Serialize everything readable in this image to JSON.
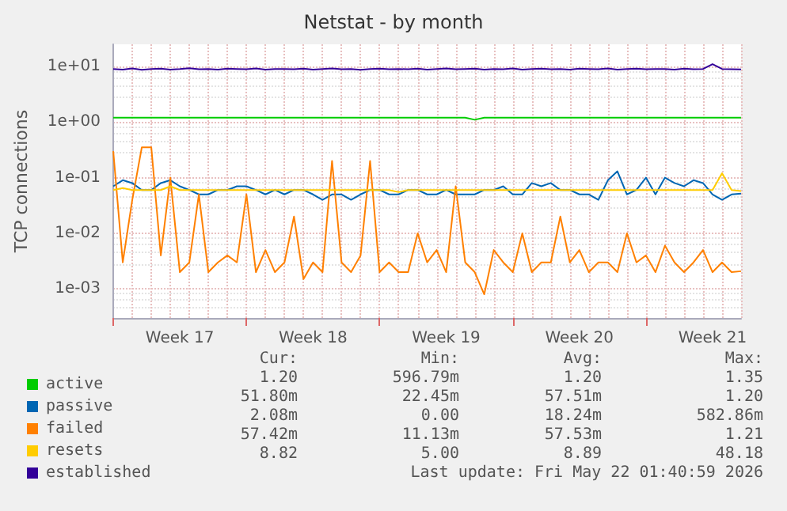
{
  "chart_data": {
    "type": "line",
    "title": "Netstat - by month",
    "ylabel": "TCP connections",
    "log": "y",
    "grid": true,
    "legend": "bottom left",
    "marker": "none",
    "line_style": "solid",
    "categories": [
      null,
      null,
      null,
      null,
      null,
      null,
      null,
      "Week 17",
      null,
      null,
      null,
      null,
      null,
      null,
      null,
      null,
      null,
      null,
      null,
      null,
      null,
      "Week 18",
      null,
      null,
      null,
      null,
      null,
      null,
      null,
      null,
      null,
      null,
      null,
      null,
      null,
      "Week 19",
      null,
      null,
      null,
      null,
      null,
      null,
      null,
      null,
      null,
      null,
      null,
      null,
      null,
      "Week 20",
      null,
      null,
      null,
      null,
      null,
      null,
      null,
      null,
      null,
      null,
      null,
      null,
      null,
      "Week 21",
      null,
      null,
      null
    ],
    "ylim": [
      0.0003,
      25
    ],
    "yticks": [
      {
        "value": 0.001,
        "label": "1e-03"
      },
      {
        "value": 0.01,
        "label": "1e-02"
      },
      {
        "value": 0.1,
        "label": "1e-01"
      },
      {
        "value": 1,
        "label": "1e+00"
      },
      {
        "value": 10,
        "label": "1e+01"
      }
    ],
    "series": [
      {
        "name": "active",
        "color": "#00cc00",
        "values": [
          1.2,
          1.2,
          1.2,
          1.2,
          1.2,
          1.2,
          1.2,
          1.2,
          1.2,
          1.2,
          1.2,
          1.2,
          1.2,
          1.2,
          1.2,
          1.2,
          1.2,
          1.2,
          1.2,
          1.2,
          1.2,
          1.2,
          1.2,
          1.2,
          1.2,
          1.2,
          1.2,
          1.2,
          1.2,
          1.2,
          1.2,
          1.2,
          1.2,
          1.2,
          1.2,
          1.2,
          1.2,
          1.2,
          1.1,
          1.2,
          1.2,
          1.2,
          1.2,
          1.2,
          1.2,
          1.2,
          1.2,
          1.2,
          1.2,
          1.2,
          1.2,
          1.2,
          1.2,
          1.2,
          1.2,
          1.2,
          1.2,
          1.2,
          1.2,
          1.2,
          1.2,
          1.2,
          1.2,
          1.2,
          1.2,
          1.2,
          1.2
        ]
      },
      {
        "name": "passive",
        "color": "#0066b3",
        "values": [
          0.07,
          0.09,
          0.08,
          0.06,
          0.06,
          0.08,
          0.09,
          0.07,
          0.06,
          0.05,
          0.05,
          0.06,
          0.06,
          0.07,
          0.07,
          0.06,
          0.05,
          0.06,
          0.05,
          0.06,
          0.06,
          0.05,
          0.04,
          0.05,
          0.05,
          0.04,
          0.05,
          0.06,
          0.06,
          0.05,
          0.05,
          0.06,
          0.06,
          0.05,
          0.05,
          0.06,
          0.05,
          0.05,
          0.05,
          0.06,
          0.06,
          0.07,
          0.05,
          0.05,
          0.08,
          0.07,
          0.08,
          0.06,
          0.06,
          0.05,
          0.05,
          0.04,
          0.09,
          0.13,
          0.05,
          0.06,
          0.1,
          0.05,
          0.1,
          0.08,
          0.07,
          0.09,
          0.08,
          0.05,
          0.04,
          0.05,
          0.0518
        ]
      },
      {
        "name": "failed",
        "color": "#ff8000",
        "values": [
          0.3,
          0.003,
          0.04,
          0.35,
          0.35,
          0.004,
          0.1,
          0.002,
          0.003,
          0.05,
          0.002,
          0.003,
          0.004,
          0.003,
          0.05,
          0.002,
          0.005,
          0.002,
          0.003,
          0.02,
          0.0015,
          0.003,
          0.002,
          0.2,
          0.003,
          0.002,
          0.004,
          0.2,
          0.002,
          0.003,
          0.002,
          0.002,
          0.01,
          0.003,
          0.005,
          0.002,
          0.07,
          0.003,
          0.002,
          0.0008,
          0.005,
          0.003,
          0.002,
          0.01,
          0.002,
          0.003,
          0.003,
          0.02,
          0.003,
          0.005,
          0.002,
          0.003,
          0.003,
          0.002,
          0.01,
          0.003,
          0.004,
          0.002,
          0.006,
          0.003,
          0.002,
          0.003,
          0.005,
          0.002,
          0.003,
          0.002,
          0.00208
        ]
      },
      {
        "name": "resets",
        "color": "#ffcc00",
        "values": [
          0.06,
          0.065,
          0.06,
          0.06,
          0.06,
          0.06,
          0.07,
          0.06,
          0.06,
          0.06,
          0.06,
          0.06,
          0.06,
          0.06,
          0.06,
          0.06,
          0.06,
          0.06,
          0.06,
          0.06,
          0.06,
          0.06,
          0.06,
          0.06,
          0.06,
          0.06,
          0.06,
          0.06,
          0.06,
          0.06,
          0.055,
          0.06,
          0.06,
          0.06,
          0.06,
          0.06,
          0.06,
          0.06,
          0.06,
          0.06,
          0.06,
          0.06,
          0.06,
          0.06,
          0.06,
          0.06,
          0.06,
          0.06,
          0.06,
          0.06,
          0.06,
          0.06,
          0.06,
          0.06,
          0.06,
          0.06,
          0.06,
          0.06,
          0.06,
          0.06,
          0.06,
          0.06,
          0.06,
          0.06,
          0.12,
          0.06,
          0.0574
        ]
      },
      {
        "name": "established",
        "color": "#330099",
        "values": [
          9,
          8.8,
          9.2,
          8.7,
          9,
          9.1,
          8.8,
          9,
          9.3,
          8.9,
          9,
          8.8,
          9.1,
          9,
          8.9,
          9.2,
          8.8,
          9,
          9,
          8.9,
          9.1,
          8.8,
          9,
          9.2,
          8.9,
          9,
          8.7,
          9,
          9.1,
          8.9,
          9,
          8.9,
          9.1,
          8.8,
          9,
          9.2,
          8.9,
          9,
          9.1,
          8.8,
          9,
          8.9,
          9.2,
          8.8,
          9,
          9.1,
          8.9,
          9,
          8.8,
          9.1,
          9,
          8.9,
          9.2,
          8.8,
          9,
          9.1,
          8.9,
          9,
          9,
          8.8,
          9.1,
          8.9,
          9,
          11,
          9,
          8.9,
          8.82
        ]
      }
    ],
    "annotations": [
      "Cur:",
      "Min:",
      "Avg:",
      "Max:",
      "1.20",
      "596.79m",
      "1.20",
      "1.35",
      "51.80m",
      "22.45m",
      "57.51m",
      "1.20",
      "2.08m",
      "0.00",
      "18.24m",
      "582.86m",
      "57.42m",
      "11.13m",
      "57.53m",
      "1.21",
      "8.82",
      "5.00",
      "8.89",
      "48.18",
      "Last update: Fri May 22 01:40:59 2026"
    ]
  }
}
